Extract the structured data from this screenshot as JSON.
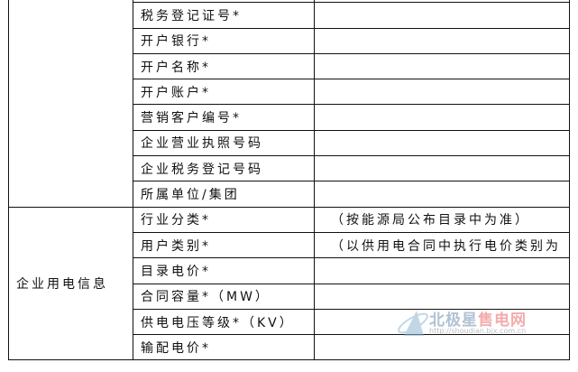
{
  "group1_rows": [
    "",
    "税务登记证号*",
    "开户银行*",
    "开户名称*",
    "开户账户*",
    "营销客户编号*",
    "企业营业执照号码",
    "企业税务登记号码",
    "所属单位/集团"
  ],
  "group2": {
    "label": "企业用电信息",
    "rows": [
      {
        "field": "行业分类*",
        "note": "（按能源局公布目录中为准）"
      },
      {
        "field": "用户类别*",
        "note": "（以供用电合同中执行电价类别为"
      },
      {
        "field": "目录电价*",
        "note": ""
      },
      {
        "field": "合同容量*（MW）",
        "note": ""
      },
      {
        "field": "供电电压等级*（KV）",
        "note": ""
      },
      {
        "field": "输配电价*",
        "note": ""
      }
    ]
  },
  "watermark": {
    "brand_a": "北极星",
    "brand_b": "售电网",
    "url": "http://shoudian.bjx.com.cn"
  }
}
